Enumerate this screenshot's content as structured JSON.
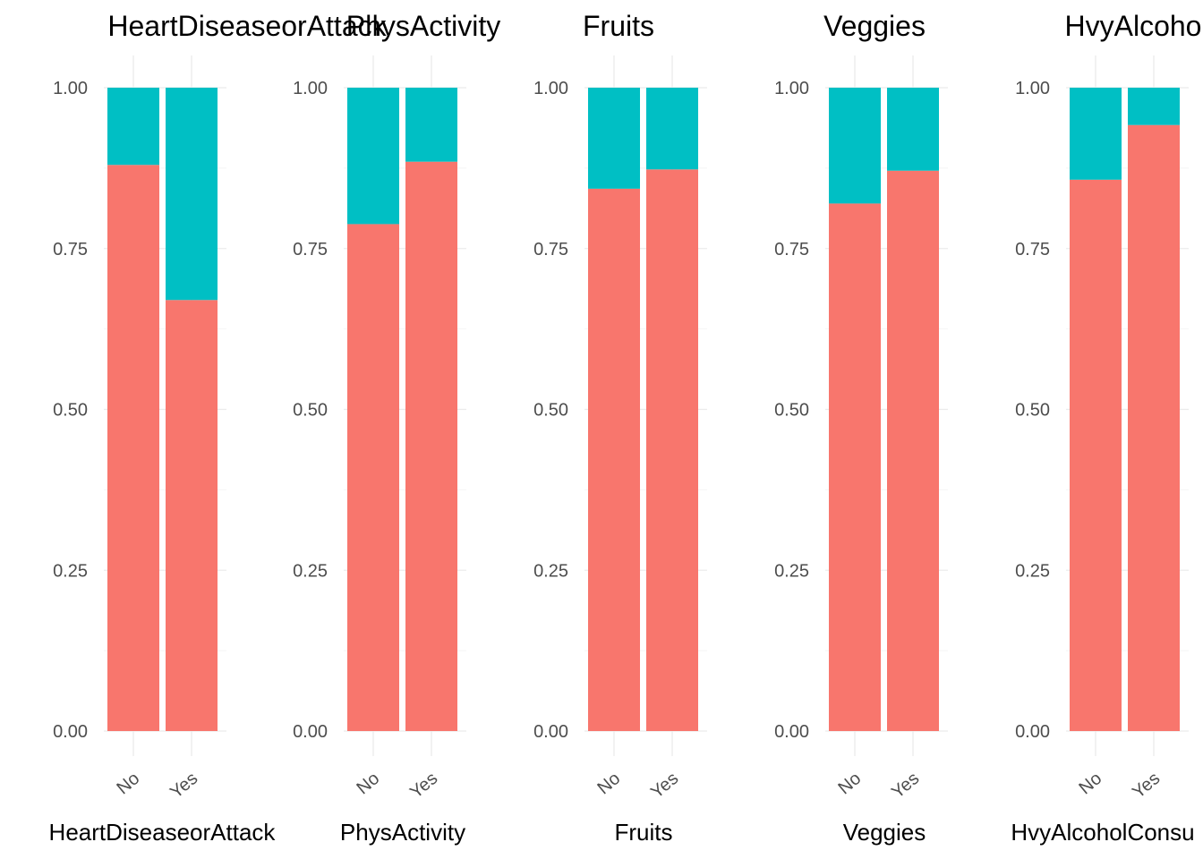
{
  "chart_data": [
    {
      "type": "bar",
      "stacked": true,
      "title": "HeartDiseaseorAttack",
      "xlabel": "HeartDiseaseorAttack",
      "ylabel": "",
      "categories": [
        "No",
        "Yes"
      ],
      "series": [
        {
          "values": [
            0.88,
            0.67
          ],
          "color": "#F8766D"
        },
        {
          "values": [
            0.12,
            0.33
          ],
          "color": "#00BFC4"
        }
      ],
      "ylim": [
        0,
        1
      ],
      "yticks": [
        "0.00",
        "0.25",
        "0.50",
        "0.75",
        "1.00"
      ],
      "grid": true,
      "legend": "none"
    },
    {
      "type": "bar",
      "stacked": true,
      "title": "PhysActivity",
      "xlabel": "PhysActivity",
      "ylabel": "",
      "categories": [
        "No",
        "Yes"
      ],
      "series": [
        {
          "values": [
            0.788,
            0.885
          ],
          "color": "#F8766D"
        },
        {
          "values": [
            0.212,
            0.115
          ],
          "color": "#00BFC4"
        }
      ],
      "ylim": [
        0,
        1
      ],
      "yticks": [
        "0.00",
        "0.25",
        "0.50",
        "0.75",
        "1.00"
      ],
      "grid": true,
      "legend": "none"
    },
    {
      "type": "bar",
      "stacked": true,
      "title": "Fruits",
      "xlabel": "Fruits",
      "ylabel": "",
      "categories": [
        "No",
        "Yes"
      ],
      "series": [
        {
          "values": [
            0.843,
            0.873
          ],
          "color": "#F8766D"
        },
        {
          "values": [
            0.157,
            0.127
          ],
          "color": "#00BFC4"
        }
      ],
      "ylim": [
        0,
        1
      ],
      "yticks": [
        "0.00",
        "0.25",
        "0.50",
        "0.75",
        "1.00"
      ],
      "grid": true,
      "legend": "none"
    },
    {
      "type": "bar",
      "stacked": true,
      "title": "Veggies",
      "xlabel": "Veggies",
      "ylabel": "",
      "categories": [
        "No",
        "Yes"
      ],
      "series": [
        {
          "values": [
            0.82,
            0.871
          ],
          "color": "#F8766D"
        },
        {
          "values": [
            0.18,
            0.129
          ],
          "color": "#00BFC4"
        }
      ],
      "ylim": [
        0,
        1
      ],
      "yticks": [
        "0.00",
        "0.25",
        "0.50",
        "0.75",
        "1.00"
      ],
      "grid": true,
      "legend": "none"
    },
    {
      "type": "bar",
      "stacked": true,
      "title": "HvyAlcoho",
      "xlabel": "HvyAlcoholConsu",
      "ylabel": "",
      "categories": [
        "No",
        "Yes"
      ],
      "series": [
        {
          "values": [
            0.857,
            0.942
          ],
          "color": "#F8766D"
        },
        {
          "values": [
            0.143,
            0.058
          ],
          "color": "#00BFC4"
        }
      ],
      "ylim": [
        0,
        1
      ],
      "yticks": [
        "0.00",
        "0.25",
        "0.50",
        "0.75",
        "1.00"
      ],
      "grid": true,
      "legend": "none"
    }
  ]
}
